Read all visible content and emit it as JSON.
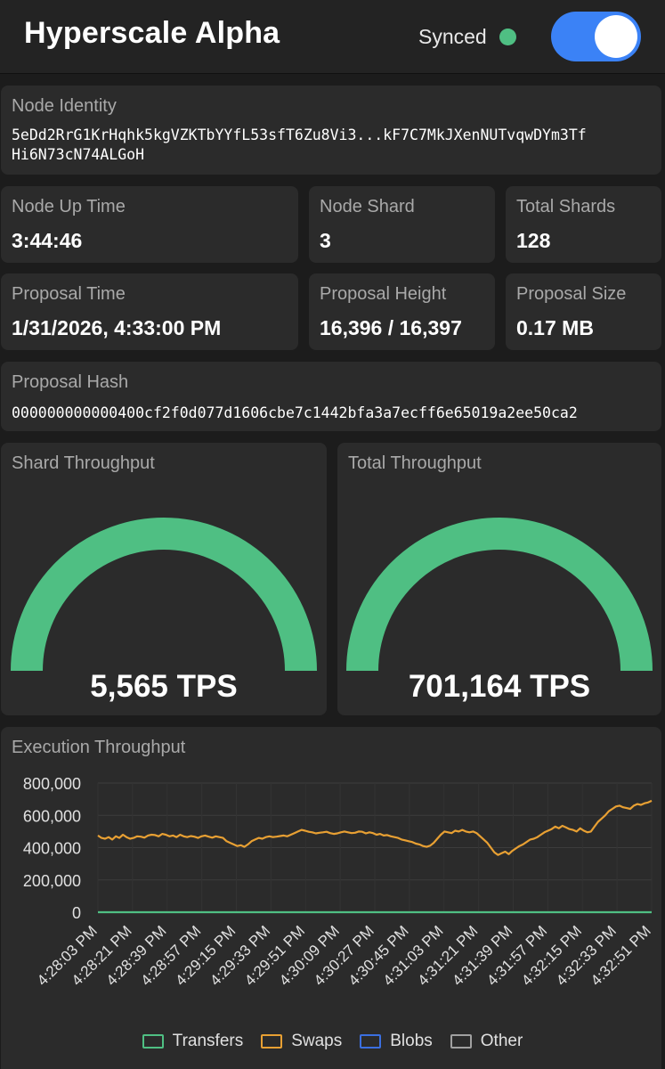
{
  "header": {
    "title": "Hyperscale Alpha",
    "sync_status": "Synced",
    "sync_color": "#4fbf83",
    "toggle_on": true,
    "toggle_color": "#3b82f6"
  },
  "node_identity": {
    "label": "Node Identity",
    "line1": "5eDd2RrG1KrHqhk5kgVZKTbYYfL53sfT6Zu8Vi3...kF7C7MkJXenNUTvqwDYm3Tf",
    "line2": "Hi6N73cN74ALGoH"
  },
  "stats": {
    "up_time": {
      "label": "Node Up Time",
      "value": "3:44:46"
    },
    "shard": {
      "label": "Node Shard",
      "value": "3"
    },
    "total_shards": {
      "label": "Total Shards",
      "value": "128"
    },
    "proposal_time": {
      "label": "Proposal Time",
      "value": "1/31/2026, 4:33:00 PM"
    },
    "proposal_height": {
      "label": "Proposal Height",
      "value": "16,396 / 16,397"
    },
    "proposal_size": {
      "label": "Proposal Size",
      "value": "0.17 MB"
    }
  },
  "proposal_hash": {
    "label": "Proposal Hash",
    "value": "000000000000400cf2f0d077d1606cbe7c1442bfa3a7ecff6e65019a2ee50ca2"
  },
  "gauges": {
    "shard": {
      "label": "Shard Throughput",
      "value": "5,565 TPS",
      "fill_fraction": 1.0
    },
    "total": {
      "label": "Total Throughput",
      "value": "701,164 TPS",
      "fill_fraction": 1.0
    },
    "color": "#4fbf83"
  },
  "chart_data": {
    "type": "line",
    "title": "Execution Throughput",
    "ylim": [
      0,
      800000
    ],
    "yticks": [
      "800,000",
      "600,000",
      "400,000",
      "200,000",
      "0"
    ],
    "x_tick_labels": [
      "4:28:03 PM",
      "4:28:21 PM",
      "4:28:39 PM",
      "4:28:57 PM",
      "4:29:15 PM",
      "4:29:33 PM",
      "4:29:51 PM",
      "4:30:09 PM",
      "4:30:27 PM",
      "4:30:45 PM",
      "4:31:03 PM",
      "4:31:21 PM",
      "4:31:39 PM",
      "4:31:57 PM",
      "4:32:15 PM",
      "4:32:33 PM",
      "4:32:51 PM"
    ],
    "series": [
      {
        "name": "Transfers",
        "color": "#4fbf83",
        "values": [
          0,
          0,
          0,
          0,
          0,
          0,
          0,
          0,
          0,
          0,
          0,
          0,
          0,
          0,
          0,
          0,
          0,
          0,
          0,
          0,
          0,
          0,
          0,
          0,
          0,
          0,
          0,
          0,
          0,
          0,
          0,
          0,
          0,
          0,
          0,
          0,
          0,
          0,
          0,
          0,
          0,
          0,
          0,
          0,
          0,
          0,
          0,
          0,
          0,
          0,
          0,
          0,
          0,
          0,
          0,
          0,
          0,
          0,
          0,
          0,
          0,
          0,
          0,
          0,
          0,
          0,
          0,
          0,
          0,
          0,
          0,
          0,
          0,
          0,
          0,
          0,
          0,
          0,
          0,
          0,
          0,
          0,
          0,
          0,
          0,
          0,
          0,
          0,
          0,
          0,
          0,
          0,
          0,
          0,
          0,
          0,
          0,
          0,
          0,
          0,
          0,
          0,
          0,
          0,
          0,
          0,
          0,
          0,
          0,
          0,
          0,
          0,
          0,
          0,
          0,
          0,
          0,
          0,
          0,
          0,
          0,
          0,
          0,
          0,
          0,
          0,
          0,
          0,
          0,
          0,
          0,
          0,
          0,
          0,
          0,
          0,
          0,
          0,
          0,
          0,
          0,
          0,
          0,
          0,
          0,
          0,
          0,
          0,
          0,
          0,
          0,
          0,
          0,
          0,
          0,
          0,
          0,
          0,
          0,
          0,
          0,
          0,
          0,
          0,
          0,
          0,
          0,
          0,
          0,
          0,
          0,
          0,
          0,
          0,
          0,
          0,
          0,
          0,
          0,
          0,
          0,
          0,
          0,
          0,
          0,
          0,
          0,
          0,
          0,
          0,
          0,
          0,
          0,
          0,
          0,
          0,
          0,
          0,
          0,
          0,
          0,
          0,
          0,
          0,
          0,
          0,
          0,
          0,
          0,
          0,
          0,
          0,
          0,
          0,
          0,
          0,
          0,
          0,
          0,
          0,
          0,
          0,
          0,
          0,
          0,
          0,
          0,
          0,
          0,
          0,
          0,
          0,
          0,
          0,
          0,
          0,
          0,
          0,
          0,
          0,
          0,
          0,
          0,
          0,
          0,
          0,
          0,
          0,
          0,
          0,
          0,
          0,
          0,
          0,
          0,
          0,
          0,
          0,
          0,
          0,
          0,
          0,
          0,
          0,
          0,
          0,
          0,
          0,
          0,
          0,
          0,
          0,
          0,
          0,
          0,
          0,
          0,
          0,
          0,
          0,
          0,
          0,
          0,
          0,
          0,
          0,
          0,
          0,
          0,
          0,
          0,
          0,
          0,
          0,
          0,
          0,
          0,
          0,
          0,
          0,
          0,
          0,
          0,
          0,
          0,
          0,
          0,
          0,
          0,
          0,
          0,
          0,
          0,
          0,
          0,
          0,
          0,
          0,
          0,
          0,
          0,
          0,
          0,
          0,
          0,
          0
        ]
      },
      {
        "name": "Swaps",
        "color": "#e8a033",
        "values": [
          475000,
          460000,
          455000,
          465000,
          450000,
          470000,
          460000,
          480000,
          465000,
          455000,
          460000,
          470000,
          468000,
          462000,
          475000,
          480000,
          478000,
          470000,
          485000,
          480000,
          470000,
          475000,
          465000,
          480000,
          470000,
          465000,
          472000,
          468000,
          460000,
          470000,
          475000,
          468000,
          462000,
          470000,
          465000,
          460000,
          440000,
          430000,
          420000,
          410000,
          415000,
          405000,
          420000,
          440000,
          450000,
          460000,
          455000,
          465000,
          470000,
          465000,
          468000,
          472000,
          475000,
          470000,
          480000,
          490000,
          500000,
          510000,
          505000,
          498000,
          495000,
          488000,
          492000,
          495000,
          498000,
          490000,
          485000,
          488000,
          495000,
          500000,
          495000,
          490000,
          492000,
          500000,
          498000,
          488000,
          495000,
          490000,
          480000,
          485000,
          475000,
          478000,
          470000,
          465000,
          460000,
          450000,
          445000,
          440000,
          435000,
          425000,
          420000,
          410000,
          405000,
          412000,
          430000,
          455000,
          480000,
          500000,
          495000,
          490000,
          505000,
          500000,
          510000,
          500000,
          495000,
          500000,
          490000,
          470000,
          450000,
          430000,
          400000,
          370000,
          355000,
          365000,
          375000,
          360000,
          380000,
          395000,
          410000,
          420000,
          435000,
          450000,
          455000,
          465000,
          480000,
          495000,
          505000,
          515000,
          530000,
          520000,
          535000,
          525000,
          515000,
          510000,
          500000,
          520000,
          505000,
          495000,
          500000,
          530000,
          560000,
          580000,
          600000,
          625000,
          640000,
          655000,
          660000,
          650000,
          645000,
          640000,
          660000,
          670000,
          665000,
          675000,
          680000,
          690000
        ]
      }
    ],
    "legend": [
      {
        "name": "Transfers",
        "color": "#4fbf83"
      },
      {
        "name": "Swaps",
        "color": "#e8a033"
      },
      {
        "name": "Blobs",
        "color": "#3b6fe0"
      },
      {
        "name": "Other",
        "color": "#a0a0a0"
      }
    ],
    "legend_placement": "bottom",
    "grid": true
  }
}
